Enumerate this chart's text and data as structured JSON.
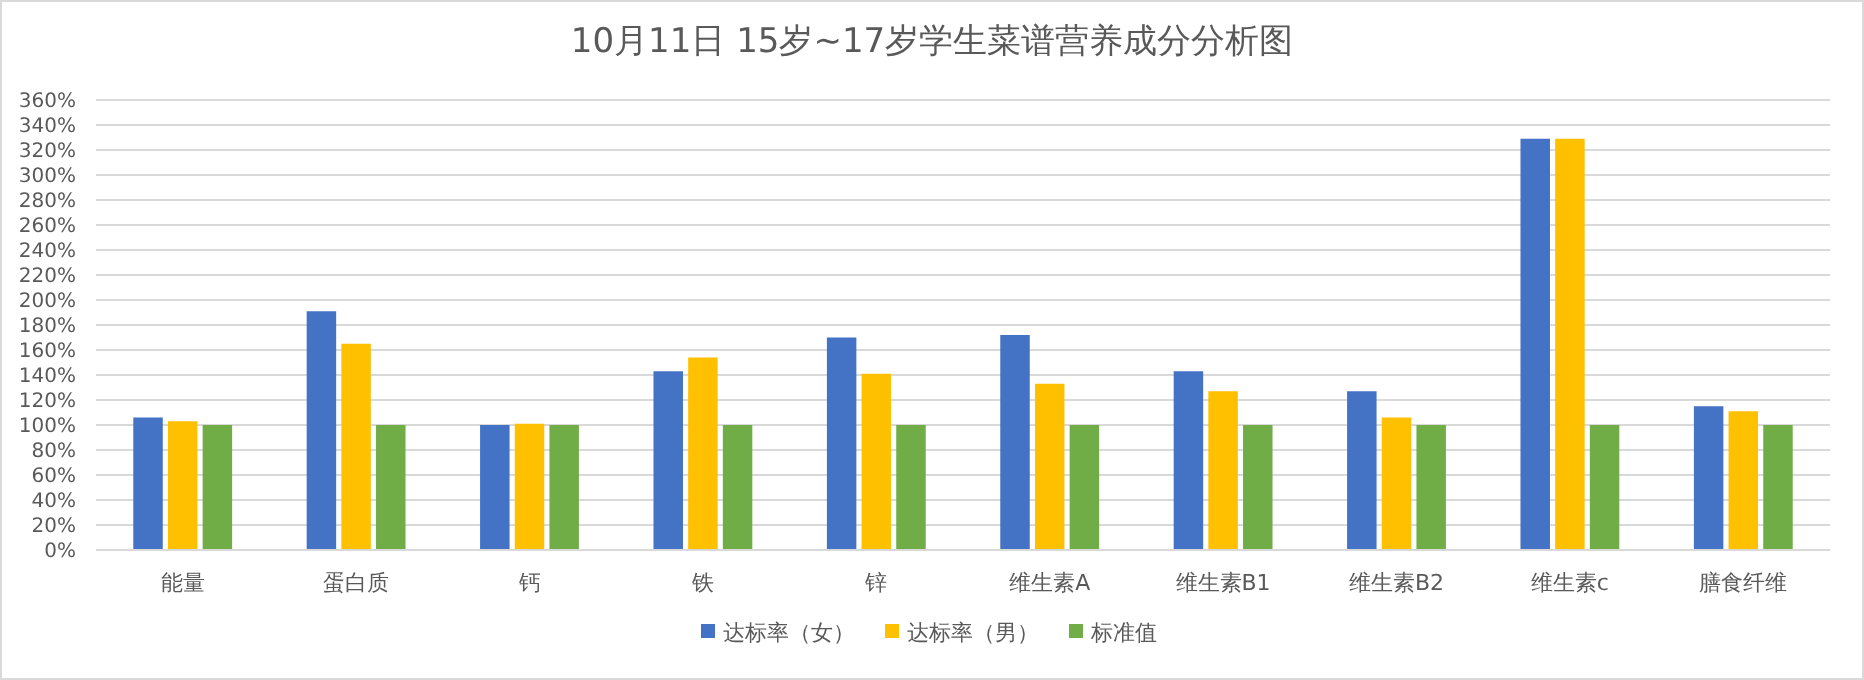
{
  "chart_data": {
    "type": "bar",
    "title": "10月11日 15岁~17岁学生菜谱营养成分分析图",
    "categories": [
      "能量",
      "蛋白质",
      "钙",
      "铁",
      "锌",
      "维生素A",
      "维生素B1",
      "维生素B2",
      "维生素c",
      "膳食纤维"
    ],
    "series": [
      {
        "name": "达标率（女）",
        "color": "#4472c4",
        "values": [
          106,
          191,
          100,
          143,
          170,
          172,
          143,
          127,
          329,
          115
        ]
      },
      {
        "name": "达标率（男）",
        "color": "#ffc000",
        "values": [
          103,
          165,
          101,
          154,
          141,
          133,
          127,
          106,
          329,
          111
        ]
      },
      {
        "name": "标准值",
        "color": "#70ad47",
        "values": [
          100,
          100,
          100,
          100,
          100,
          100,
          100,
          100,
          100,
          100
        ]
      }
    ],
    "ylim": [
      0,
      360
    ],
    "yticks": [
      {
        "value": 0,
        "label": "0%"
      },
      {
        "value": 20,
        "label": "20%"
      },
      {
        "value": 40,
        "label": "40%"
      },
      {
        "value": 60,
        "label": "60%"
      },
      {
        "value": 80,
        "label": "80%"
      },
      {
        "value": 100,
        "label": "100%"
      },
      {
        "value": 120,
        "label": "120%"
      },
      {
        "value": 140,
        "label": "140%"
      },
      {
        "value": 160,
        "label": "160%"
      },
      {
        "value": 180,
        "label": "180%"
      },
      {
        "value": 200,
        "label": "200%"
      },
      {
        "value": 220,
        "label": "220%"
      },
      {
        "value": 240,
        "label": "240%"
      },
      {
        "value": 260,
        "label": "260%"
      },
      {
        "value": 280,
        "label": "280%"
      },
      {
        "value": 300,
        "label": "300%"
      },
      {
        "value": 320,
        "label": "320%"
      },
      {
        "value": 340,
        "label": "340%"
      },
      {
        "value": 360,
        "label": "360%"
      }
    ],
    "grid": "y",
    "legend": "bottom"
  }
}
